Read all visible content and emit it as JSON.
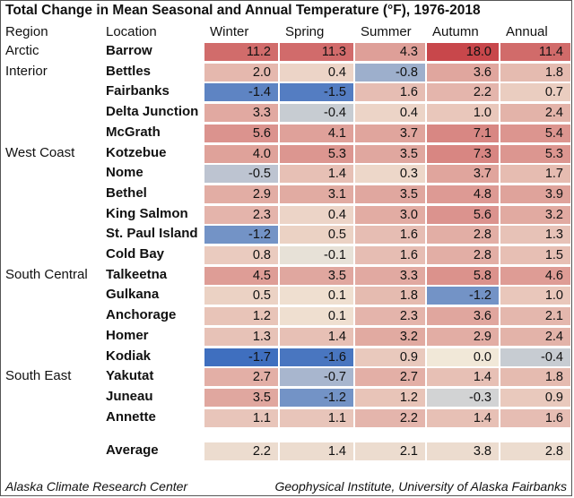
{
  "chart_data": {
    "type": "table",
    "title": "Total Change in Mean Seasonal and Annual Temperature (°F), 1976-2018",
    "columns": [
      "Region",
      "Location",
      "Winter",
      "Spring",
      "Summer",
      "Autumn",
      "Annual"
    ],
    "rows": [
      {
        "region": "Arctic",
        "location": "Barrow",
        "values": [
          11.2,
          11.3,
          4.3,
          18.0,
          11.4
        ]
      },
      {
        "region": "Interior",
        "location": "Bettles",
        "values": [
          2.0,
          0.4,
          -0.8,
          3.6,
          1.8
        ]
      },
      {
        "region": "",
        "location": "Fairbanks",
        "values": [
          -1.4,
          -1.5,
          1.6,
          2.2,
          0.7
        ]
      },
      {
        "region": "",
        "location": "Delta Junction",
        "values": [
          3.3,
          -0.4,
          0.4,
          1.0,
          2.4
        ]
      },
      {
        "region": "",
        "location": "McGrath",
        "values": [
          5.6,
          4.1,
          3.7,
          7.1,
          5.4
        ]
      },
      {
        "region": "West Coast",
        "location": "Kotzebue",
        "values": [
          4.0,
          5.3,
          3.5,
          7.3,
          5.3
        ]
      },
      {
        "region": "",
        "location": "Nome",
        "values": [
          -0.5,
          1.4,
          0.3,
          3.7,
          1.7
        ]
      },
      {
        "region": "",
        "location": "Bethel",
        "values": [
          2.9,
          3.1,
          3.5,
          4.8,
          3.9
        ]
      },
      {
        "region": "",
        "location": "King Salmon",
        "values": [
          2.3,
          0.4,
          3.0,
          5.6,
          3.2
        ]
      },
      {
        "region": "",
        "location": "St. Paul Island",
        "values": [
          -1.2,
          0.5,
          1.6,
          2.8,
          1.3
        ]
      },
      {
        "region": "",
        "location": "Cold Bay",
        "values": [
          0.8,
          -0.1,
          1.6,
          2.8,
          1.5
        ]
      },
      {
        "region": "South Central",
        "location": "Talkeetna",
        "values": [
          4.5,
          3.5,
          3.3,
          5.8,
          4.6
        ]
      },
      {
        "region": "",
        "location": "Gulkana",
        "values": [
          0.5,
          0.1,
          1.8,
          -1.2,
          1.0
        ]
      },
      {
        "region": "",
        "location": "Anchorage",
        "values": [
          1.2,
          0.1,
          2.3,
          3.6,
          2.1
        ]
      },
      {
        "region": "",
        "location": "Homer",
        "values": [
          1.3,
          1.4,
          3.2,
          2.9,
          2.4
        ]
      },
      {
        "region": "",
        "location": "Kodiak",
        "values": [
          -1.7,
          -1.6,
          0.9,
          0.0,
          -0.4
        ]
      },
      {
        "region": "South East",
        "location": "Yakutat",
        "values": [
          2.7,
          -0.7,
          2.7,
          1.4,
          1.8
        ]
      },
      {
        "region": "",
        "location": "Juneau",
        "values": [
          3.5,
          -1.2,
          1.2,
          -0.3,
          0.9
        ]
      },
      {
        "region": "",
        "location": "Annette",
        "values": [
          1.1,
          1.1,
          2.2,
          1.4,
          1.6
        ]
      }
    ],
    "average": {
      "location": "Average",
      "values": [
        2.2,
        1.4,
        2.1,
        3.8,
        2.8
      ]
    },
    "color_scale": {
      "negative": "#3f6fbf",
      "neutral": "#f1e8d8",
      "positive": "#c8474b",
      "min": -1.7,
      "max": 18.0
    }
  },
  "footer": {
    "left": "Alaska Climate Research Center",
    "right": "Geophysical Institute, University of Alaska Fairbanks"
  }
}
